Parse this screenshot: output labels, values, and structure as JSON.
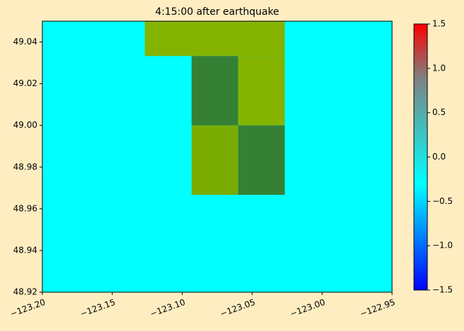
{
  "chart_data": {
    "type": "heatmap",
    "title": "4:15:00 after earthquake",
    "background_color": "#00ffff",
    "xlim": [
      -123.2,
      -122.95
    ],
    "xticks": [
      {
        "value": -123.2,
        "label": "−123.20"
      },
      {
        "value": -123.15,
        "label": "−123.15"
      },
      {
        "value": -123.1,
        "label": "−123.10"
      },
      {
        "value": -123.05,
        "label": "−123.05"
      },
      {
        "value": -123.0,
        "label": "−123.00"
      },
      {
        "value": -122.95,
        "label": "−122.95"
      }
    ],
    "ylim": [
      48.92,
      49.05
    ],
    "yticks": [
      48.92,
      48.94,
      48.96,
      48.98,
      {
        "value": 49.0,
        "label": "49.00"
      },
      49.02,
      49.04
    ],
    "cells": [
      {
        "x": [
          -123.1267,
          -123.0267
        ],
        "y": [
          49.0333,
          49.05
        ],
        "color": "#84b400"
      },
      {
        "x": [
          -123.0933,
          -123.06
        ],
        "y": [
          49.0,
          49.0333
        ],
        "color": "#358035"
      },
      {
        "x": [
          -123.06,
          -123.0267
        ],
        "y": [
          49.0,
          49.0333
        ],
        "color": "#84b400"
      },
      {
        "x": [
          -123.0933,
          -123.06
        ],
        "y": [
          48.9667,
          49.0
        ],
        "color": "#7aab00"
      },
      {
        "x": [
          -123.06,
          -123.0267
        ],
        "y": [
          48.9667,
          49.0
        ],
        "color": "#358035"
      }
    ],
    "colorbar": {
      "lim": [
        -1.5,
        1.5
      ],
      "ticks": [
        {
          "value": -1.5,
          "label": "−1.5"
        },
        {
          "value": -1.0,
          "label": "−1.0"
        },
        {
          "value": -0.5,
          "label": "−0.5"
        },
        {
          "value": 0.0,
          "label": "0.0"
        },
        {
          "value": 0.5,
          "label": "0.5"
        },
        {
          "value": 1.0,
          "label": "1.0"
        },
        {
          "value": 1.5,
          "label": "1.5"
        }
      ],
      "colors": [
        "#0000ff",
        "#0080ff",
        "#00ffff",
        "#40c0c0",
        "#808080",
        "#ff0000"
      ]
    }
  }
}
